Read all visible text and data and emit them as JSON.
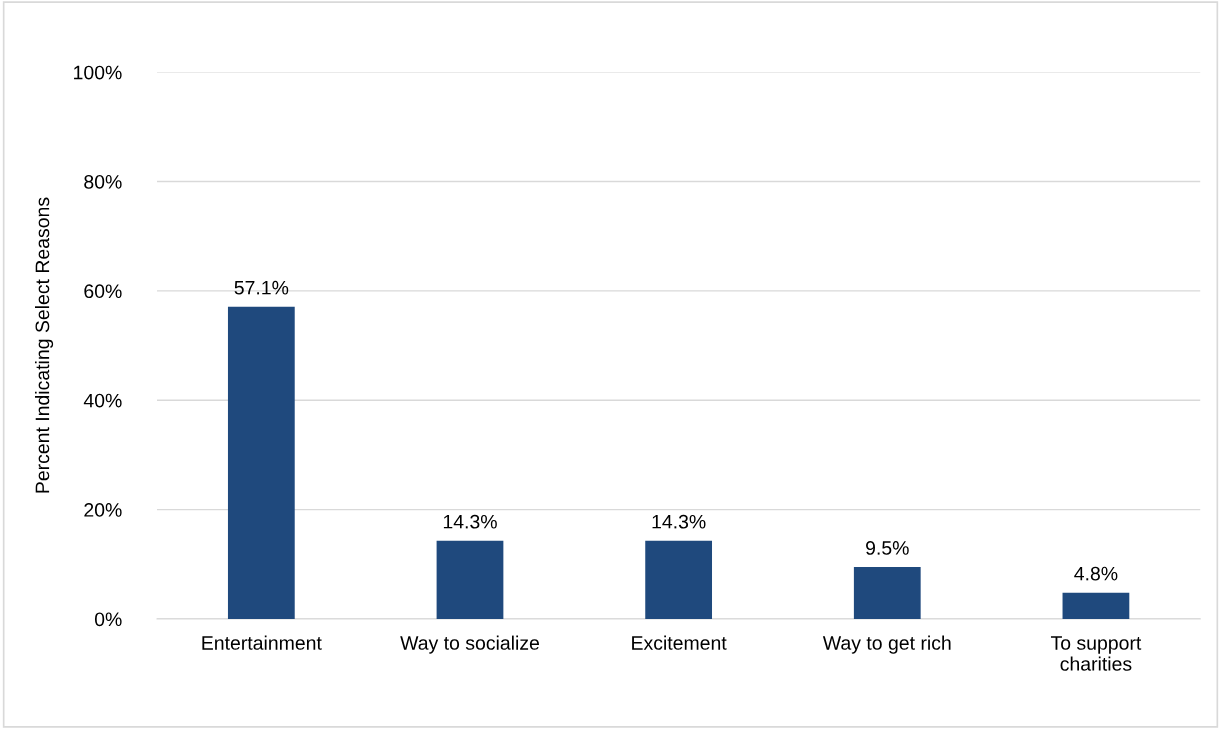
{
  "chart_data": {
    "type": "bar",
    "ylabel": "Percent Indicating Select Reasons",
    "categories": [
      "Entertainment",
      "Way to socialize",
      "Excitement",
      "Way to get rich",
      "To support\ncharities"
    ],
    "values": [
      57.1,
      14.3,
      14.3,
      9.5,
      4.8
    ],
    "value_labels": [
      "57.1%",
      "14.3%",
      "14.3%",
      "9.5%",
      "4.8%"
    ],
    "color": "#1f497d",
    "ylim": [
      0,
      100
    ],
    "yticks": [
      {
        "value": 0,
        "label": "0%"
      },
      {
        "value": 20,
        "label": "20%"
      },
      {
        "value": 40,
        "label": "40%"
      },
      {
        "value": 60,
        "label": "60%"
      },
      {
        "value": 80,
        "label": "80%"
      },
      {
        "value": 100,
        "label": "100%"
      }
    ],
    "grid": "y",
    "legend": false
  }
}
